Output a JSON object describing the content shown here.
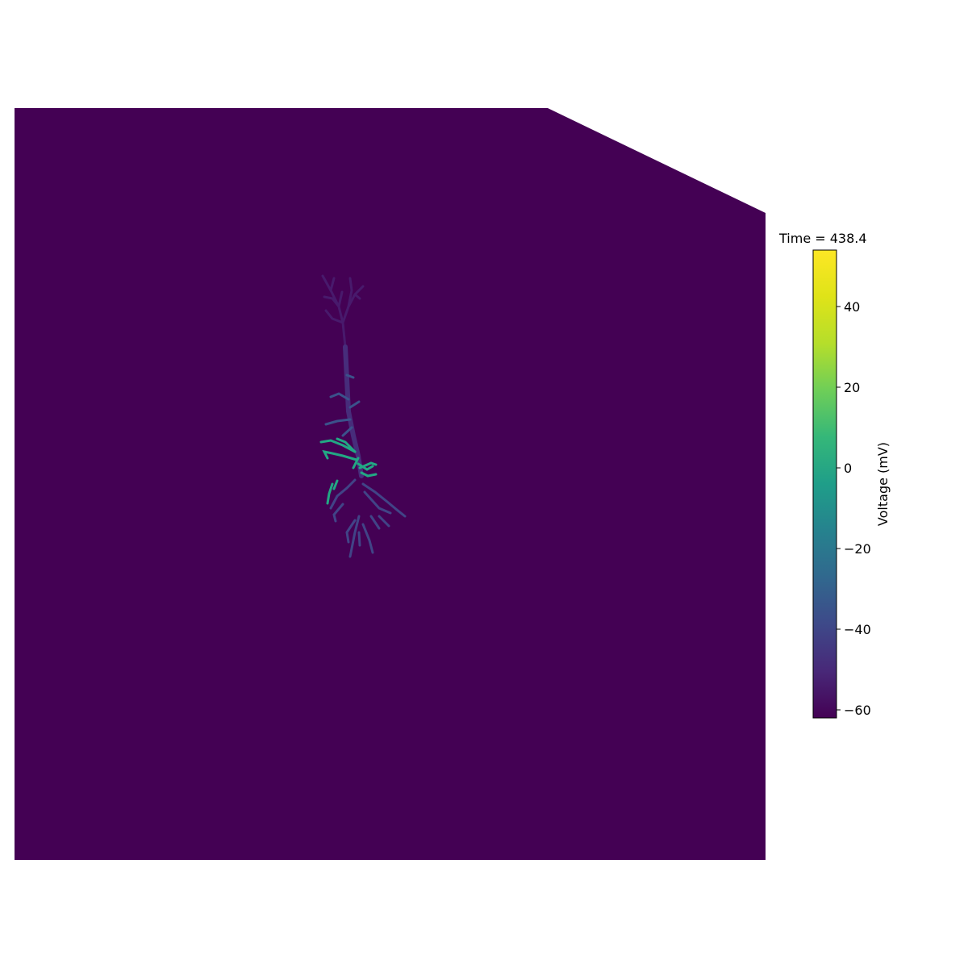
{
  "figure": {
    "background_color": "#440154",
    "neuron": {
      "trunk_color": "#472d7b",
      "upper_branch_color": "#481a6c",
      "active_branch_color": "#22a884",
      "mid_branch_color": "#3b528b",
      "basal_color": "#414487"
    }
  },
  "colorbar": {
    "title": "Time = 438.4",
    "label": "Voltage (mV)",
    "colormap": "viridis",
    "vmin": -62,
    "vmax": 54,
    "ticks": [
      {
        "value": 40,
        "label": "40"
      },
      {
        "value": 20,
        "label": "20"
      },
      {
        "value": 0,
        "label": "0"
      },
      {
        "value": -20,
        "label": "−20"
      },
      {
        "value": -40,
        "label": "−40"
      },
      {
        "value": -60,
        "label": "−60"
      }
    ]
  }
}
